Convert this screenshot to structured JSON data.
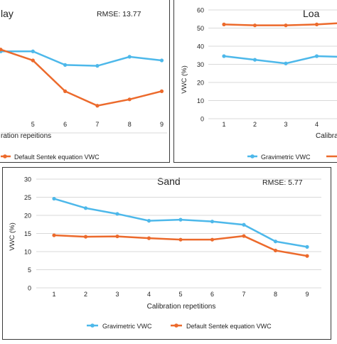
{
  "chart_data": [
    {
      "type": "line",
      "title": "lay",
      "annotation": "RMSE: 13.77",
      "xlabel": "ration repeitions",
      "x": [
        4,
        5,
        6,
        7,
        8,
        9
      ],
      "x_ticks": [
        "5",
        "6",
        "7",
        "8",
        "9"
      ],
      "y_range": [
        0,
        60
      ],
      "series": [
        {
          "name": "Gravimetric VWC",
          "color": "#4db8ea",
          "values": [
            45,
            45,
            37.5,
            37,
            42,
            40
          ]
        },
        {
          "name": "Default Sentek equation VWC",
          "color": "#ec6a2c",
          "values": [
            46,
            40,
            23,
            15,
            18.5,
            23
          ]
        }
      ],
      "legend_visible": [
        "Default Sentek equation VWC"
      ]
    },
    {
      "type": "line",
      "title": "Loa",
      "ylabel": "VWC (%)",
      "xlabel": "Calibrati",
      "x": [
        1,
        2,
        3,
        4,
        5
      ],
      "x_ticks": [
        "1",
        "2",
        "3",
        "4"
      ],
      "yticks": [
        "0",
        "10",
        "20",
        "30",
        "40",
        "50",
        "60"
      ],
      "ylim": [
        0,
        60
      ],
      "series": [
        {
          "name": "Gravimetric VWC",
          "color": "#4db8ea",
          "values": [
            34.5,
            32.5,
            30.5,
            34.5,
            34
          ]
        },
        {
          "name": "",
          "color": "#ec6a2c",
          "values": [
            52,
            51.5,
            51.5,
            52,
            53
          ]
        }
      ],
      "legend_visible": [
        "Gravimetric VWC"
      ]
    },
    {
      "type": "line",
      "title": "Sand",
      "annotation": "RMSE: 5.77",
      "ylabel": "VWC (%)",
      "xlabel": "Calibration repetitions",
      "x": [
        1,
        2,
        3,
        4,
        5,
        6,
        7,
        8,
        9
      ],
      "x_ticks": [
        "1",
        "2",
        "3",
        "4",
        "5",
        "6",
        "7",
        "8",
        "9"
      ],
      "yticks": [
        "0",
        "5",
        "10",
        "15",
        "20",
        "25",
        "30"
      ],
      "ylim": [
        0,
        30
      ],
      "series": [
        {
          "name": "Gravimetric VWC",
          "color": "#4db8ea",
          "values": [
            24.6,
            22,
            20.4,
            18.5,
            18.8,
            18.3,
            17.4,
            12.8,
            11.3
          ]
        },
        {
          "name": "Default Sentek equation VWC",
          "color": "#ec6a2c",
          "values": [
            14.5,
            14.1,
            14.2,
            13.7,
            13.3,
            13.3,
            14.3,
            10.3,
            8.8
          ]
        }
      ],
      "legend_visible": [
        "Gravimetric VWC",
        "Default Sentek equation VWC"
      ]
    }
  ]
}
